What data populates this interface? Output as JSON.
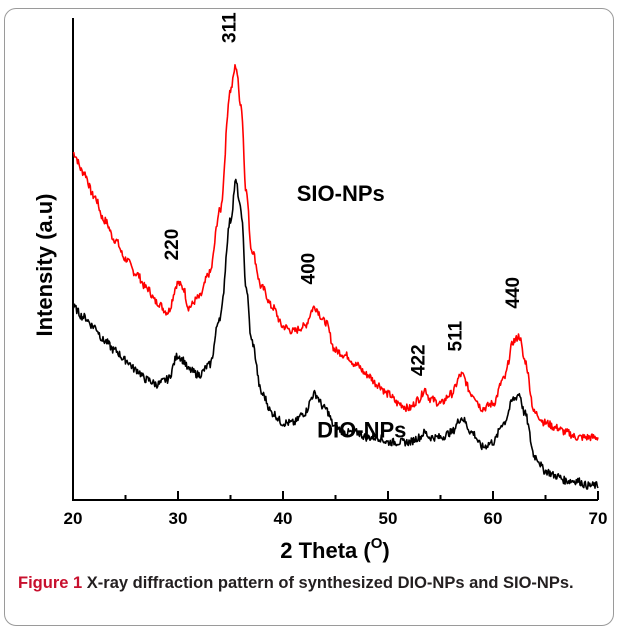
{
  "caption": {
    "label": "Figure 1",
    "text": "X-ray diffraction pattern of synthesized DIO-NPs and SIO-NPs."
  },
  "chart_data": {
    "type": "line",
    "xlabel": "2 Theta (O)",
    "xlabel_main": "2 Theta (",
    "xlabel_sup": "O",
    "xlabel_close": ")",
    "ylabel": "Intensity (a.u)",
    "xlim": [
      20,
      70
    ],
    "ylim": [
      0,
      100
    ],
    "x_ticks": [
      "20",
      "30",
      "40",
      "50",
      "60",
      "70"
    ],
    "y_ticks_labeled": false,
    "grid": false,
    "series": [
      {
        "name": "SIO-NPs",
        "color": "#ff0000",
        "x": [
          20,
          21,
          22,
          23,
          24,
          25,
          26,
          27,
          28,
          29,
          30,
          30.5,
          31,
          32,
          33,
          34,
          35,
          35.5,
          36,
          36.5,
          37,
          38,
          39,
          40,
          41,
          42,
          43,
          44,
          45,
          46,
          47,
          48,
          49,
          50,
          51,
          52,
          53,
          53.5,
          54,
          55,
          56,
          57,
          58,
          59,
          60,
          61,
          62,
          62.5,
          63,
          64,
          65,
          66,
          67,
          68,
          69,
          70
        ],
        "y": [
          72,
          68,
          63,
          58,
          54,
          50,
          47,
          44,
          41,
          39,
          45,
          44,
          40,
          42,
          47,
          60,
          85,
          90,
          82,
          64,
          52,
          44,
          40,
          36,
          35,
          36,
          40,
          37,
          31,
          30,
          28,
          26,
          24,
          22,
          20,
          19,
          21,
          23,
          21,
          20,
          22,
          26,
          22,
          19,
          20,
          25,
          33,
          34,
          29,
          18,
          16,
          15,
          14,
          13,
          13,
          13
        ]
      },
      {
        "name": "DIO-NPs",
        "color": "#000000",
        "x": [
          20,
          21,
          22,
          23,
          24,
          25,
          26,
          27,
          28,
          29,
          30,
          30.5,
          31,
          32,
          33,
          34,
          35,
          35.5,
          36,
          36.5,
          37,
          38,
          39,
          40,
          41,
          42,
          43,
          44,
          45,
          46,
          47,
          48,
          49,
          50,
          51,
          52,
          53,
          53.5,
          54,
          55,
          56,
          57,
          58,
          59,
          60,
          61,
          62,
          62.5,
          63,
          64,
          65,
          66,
          67,
          68,
          69,
          70
        ],
        "y": [
          40,
          38,
          36,
          33,
          31,
          29,
          27,
          25,
          24,
          25,
          30,
          29,
          27,
          26,
          28,
          38,
          58,
          66,
          60,
          44,
          33,
          22,
          18,
          16,
          16,
          18,
          22,
          19,
          15,
          14,
          14,
          13,
          13,
          12,
          12,
          12,
          13,
          14,
          13,
          13,
          14,
          17,
          14,
          11,
          12,
          16,
          21,
          22,
          18,
          9,
          6,
          5,
          4,
          4,
          3,
          3
        ]
      }
    ],
    "annotations": [
      {
        "text": "220",
        "x": 30,
        "y": 53
      },
      {
        "text": "311",
        "x": 35.5,
        "y": 98
      },
      {
        "text": "400",
        "x": 43,
        "y": 48
      },
      {
        "text": "422",
        "x": 53.5,
        "y": 29
      },
      {
        "text": "511",
        "x": 57,
        "y": 34
      },
      {
        "text": "440",
        "x": 62.5,
        "y": 43
      },
      {
        "text": "SIO-NPs",
        "x": 45.5,
        "y": 62
      },
      {
        "text": "DIO-NPs",
        "x": 47.5,
        "y": 13
      }
    ]
  }
}
